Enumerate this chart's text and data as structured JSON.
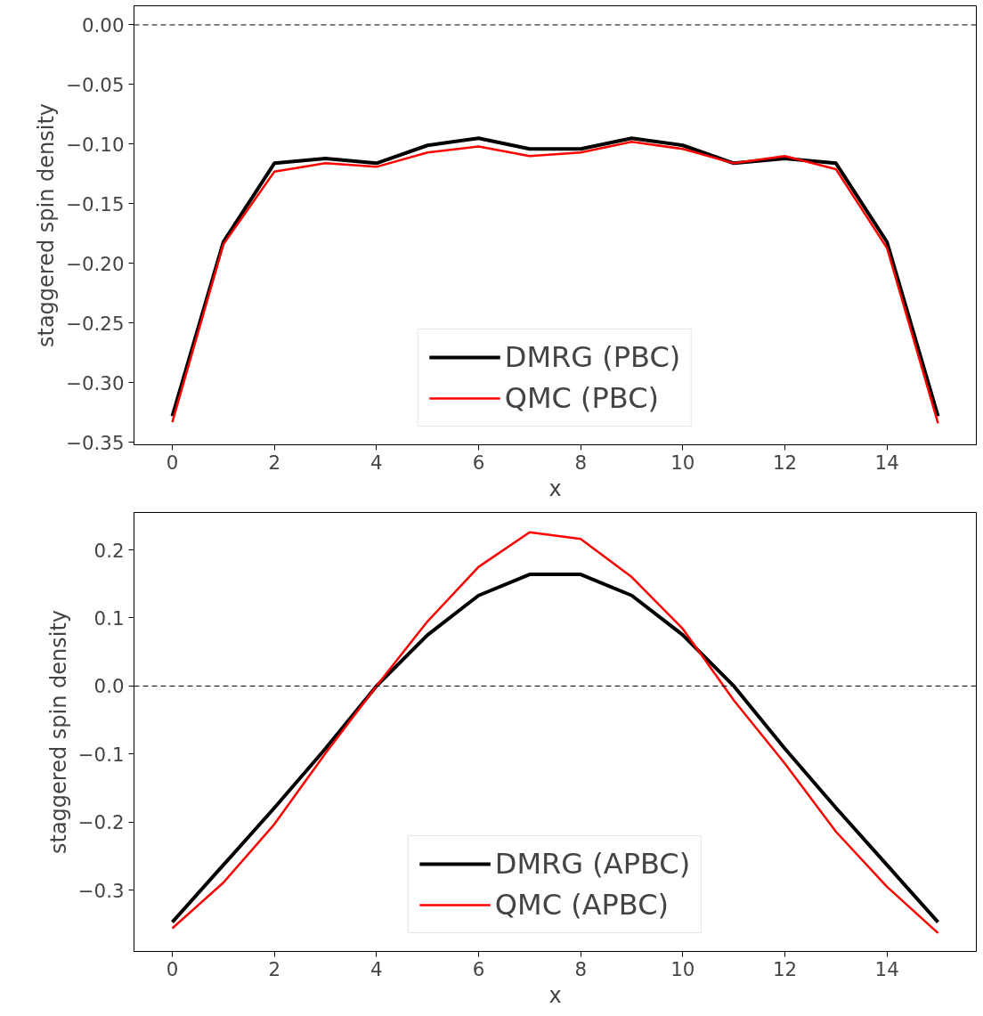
{
  "chart_data": [
    {
      "type": "line",
      "xlabel": "x",
      "ylabel": "staggered spin density",
      "x": [
        0,
        1,
        2,
        3,
        4,
        5,
        6,
        7,
        8,
        9,
        10,
        11,
        12,
        13,
        14,
        15
      ],
      "series": [
        {
          "name": "DMRG (PBC)",
          "color": "#000000",
          "values": [
            -0.328,
            -0.182,
            -0.116,
            -0.112,
            -0.116,
            -0.101,
            -0.095,
            -0.104,
            -0.104,
            -0.095,
            -0.101,
            -0.116,
            -0.112,
            -0.116,
            -0.182,
            -0.328
          ]
        },
        {
          "name": "QMC (PBC)",
          "color": "#ff0000",
          "values": [
            -0.333,
            -0.184,
            -0.123,
            -0.116,
            -0.119,
            -0.107,
            -0.102,
            -0.11,
            -0.107,
            -0.098,
            -0.104,
            -0.116,
            -0.11,
            -0.121,
            -0.187,
            -0.334
          ]
        }
      ],
      "xlim": [
        -0.75,
        15.75
      ],
      "xticks": [
        0,
        2,
        4,
        6,
        8,
        10,
        12,
        14
      ],
      "ylim": [
        -0.352,
        0.016
      ],
      "yticks": [
        {
          "value": 0,
          "label": "0.00"
        },
        {
          "value": -0.05,
          "label": "−0.05"
        },
        {
          "value": -0.1,
          "label": "−0.10"
        },
        {
          "value": -0.15,
          "label": "−0.15"
        },
        {
          "value": -0.2,
          "label": "−0.20"
        },
        {
          "value": -0.25,
          "label": "−0.25"
        },
        {
          "value": -0.3,
          "label": "−0.30"
        },
        {
          "value": -0.35,
          "label": "−0.35"
        }
      ],
      "ref_lines": [
        {
          "axis": "y",
          "value": 0,
          "color": "#000000",
          "line_style": "dashed"
        }
      ],
      "legend": "bottom",
      "grid": false,
      "line_style": "solid",
      "marker": "none"
    },
    {
      "type": "line",
      "xlabel": "x",
      "ylabel": "staggered spin density",
      "x": [
        0,
        1,
        2,
        3,
        4,
        5,
        6,
        7,
        8,
        9,
        10,
        11,
        12,
        13,
        14,
        15
      ],
      "series": [
        {
          "name": "DMRG (APBC)",
          "color": "#000000",
          "values": [
            -0.347,
            -0.263,
            -0.179,
            -0.092,
            0.0,
            0.075,
            0.133,
            0.164,
            0.164,
            0.133,
            0.075,
            0.0,
            -0.092,
            -0.179,
            -0.263,
            -0.347
          ]
        },
        {
          "name": "QMC (APBC)",
          "color": "#ff0000",
          "values": [
            -0.356,
            -0.289,
            -0.203,
            -0.099,
            0.0,
            0.095,
            0.175,
            0.226,
            0.216,
            0.16,
            0.084,
            -0.021,
            -0.114,
            -0.214,
            -0.295,
            -0.363
          ]
        }
      ],
      "xlim": [
        -0.75,
        15.75
      ],
      "xticks": [
        0,
        2,
        4,
        6,
        8,
        10,
        12,
        14
      ],
      "ylim": [
        -0.39,
        0.255
      ],
      "yticks": [
        {
          "value": 0.2,
          "label": "0.2"
        },
        {
          "value": 0.1,
          "label": "0.1"
        },
        {
          "value": 0,
          "label": "0.0"
        },
        {
          "value": -0.1,
          "label": "−0.1"
        },
        {
          "value": -0.2,
          "label": "−0.2"
        },
        {
          "value": -0.3,
          "label": "−0.3"
        }
      ],
      "ref_lines": [
        {
          "axis": "y",
          "value": 0,
          "color": "#000000",
          "line_style": "dashed"
        }
      ],
      "legend": "bottom",
      "grid": false,
      "line_style": "solid",
      "marker": "none"
    }
  ]
}
